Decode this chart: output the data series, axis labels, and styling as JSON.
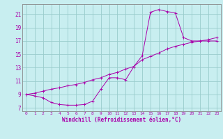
{
  "xlabel": "Windchill (Refroidissement éolien,°C)",
  "bg_color": "#c8eef0",
  "line_color": "#aa00aa",
  "grid_color": "#99cccc",
  "spine_color": "#888888",
  "xlim": [
    -0.5,
    23.5
  ],
  "ylim": [
    6.5,
    22.5
  ],
  "yticks": [
    7,
    9,
    11,
    13,
    15,
    17,
    19,
    21
  ],
  "xticks": [
    0,
    1,
    2,
    3,
    4,
    5,
    6,
    7,
    8,
    9,
    10,
    11,
    12,
    13,
    14,
    15,
    16,
    17,
    18,
    19,
    20,
    21,
    22,
    23
  ],
  "curve1_x": [
    0,
    1,
    2,
    3,
    4,
    5,
    6,
    7,
    8,
    9,
    10,
    11,
    12,
    13,
    14,
    15,
    16,
    17,
    18,
    19,
    20,
    21,
    22,
    23
  ],
  "curve1_y": [
    9.0,
    8.8,
    8.5,
    7.8,
    7.5,
    7.4,
    7.4,
    7.5,
    8.0,
    9.8,
    11.5,
    11.5,
    11.2,
    13.2,
    14.8,
    21.3,
    21.7,
    21.4,
    21.2,
    17.5,
    17.0,
    17.0,
    17.0,
    17.0
  ],
  "curve2_x": [
    0,
    1,
    2,
    3,
    4,
    5,
    6,
    7,
    8,
    9,
    10,
    11,
    12,
    13,
    14,
    15,
    16,
    17,
    18,
    19,
    20,
    21,
    22,
    23
  ],
  "curve2_y": [
    9.0,
    9.2,
    9.5,
    9.8,
    10.0,
    10.3,
    10.5,
    10.8,
    11.2,
    11.5,
    12.0,
    12.3,
    12.8,
    13.2,
    14.2,
    14.7,
    15.2,
    15.8,
    16.2,
    16.5,
    16.8,
    17.0,
    17.2,
    17.5
  ],
  "tick_fontsize": 5.5,
  "xlabel_fontsize": 5.5
}
